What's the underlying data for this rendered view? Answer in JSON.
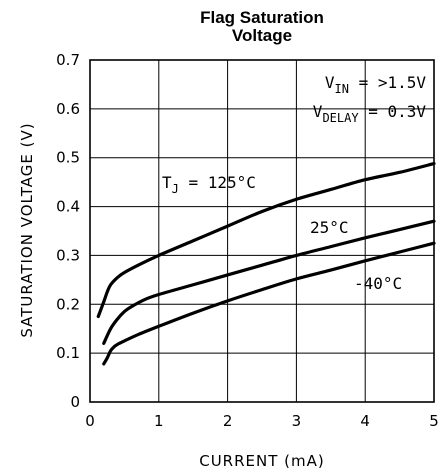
{
  "chart_data": {
    "type": "line",
    "title": [
      "Flag Saturation",
      "Voltage"
    ],
    "xlabel": "CURRENT (mA)",
    "ylabel": "SATURATION VOLTAGE (V)",
    "xlim": [
      0,
      5
    ],
    "ylim": [
      0,
      0.7
    ],
    "x_ticks": [
      "0",
      "1",
      "2",
      "3",
      "4",
      "5"
    ],
    "y_ticks": [
      "0",
      "0.1",
      "0.2",
      "0.3",
      "0.4",
      "0.5",
      "0.6",
      "0.7"
    ],
    "grid": true,
    "annotations": {
      "vin": {
        "main": "V",
        "sub": "IN",
        "rest": " = >1.5V"
      },
      "vdelay": {
        "main": "V",
        "sub": "DELAY",
        "rest": " = 0.3V"
      }
    },
    "series": [
      {
        "name": "125°C",
        "label_parts": {
          "main": "T",
          "sub": "J",
          "rest": " = 125°C"
        },
        "x": [
          0.12,
          0.2,
          0.25,
          0.3,
          0.4,
          0.5,
          0.7,
          1.0,
          1.5,
          2.0,
          2.5,
          3.0,
          3.5,
          4.0,
          4.5,
          5.0
        ],
        "y": [
          0.175,
          0.205,
          0.225,
          0.24,
          0.255,
          0.265,
          0.28,
          0.3,
          0.33,
          0.36,
          0.39,
          0.415,
          0.435,
          0.455,
          0.47,
          0.488
        ]
      },
      {
        "name": "25°C",
        "x": [
          0.2,
          0.3,
          0.4,
          0.5,
          0.6,
          0.8,
          1.0,
          1.5,
          2.0,
          2.5,
          3.0,
          3.5,
          4.0,
          4.5,
          5.0
        ],
        "y": [
          0.12,
          0.15,
          0.17,
          0.185,
          0.195,
          0.21,
          0.22,
          0.24,
          0.26,
          0.28,
          0.3,
          0.318,
          0.336,
          0.353,
          0.37
        ]
      },
      {
        "name": "-40°C",
        "x": [
          0.2,
          0.25,
          0.3,
          0.35,
          0.4,
          0.5,
          0.7,
          1.0,
          1.5,
          2.0,
          2.5,
          3.0,
          3.5,
          4.0,
          4.5,
          5.0
        ],
        "y": [
          0.078,
          0.09,
          0.105,
          0.113,
          0.118,
          0.125,
          0.138,
          0.155,
          0.182,
          0.207,
          0.23,
          0.252,
          0.27,
          0.289,
          0.307,
          0.325
        ]
      }
    ]
  }
}
